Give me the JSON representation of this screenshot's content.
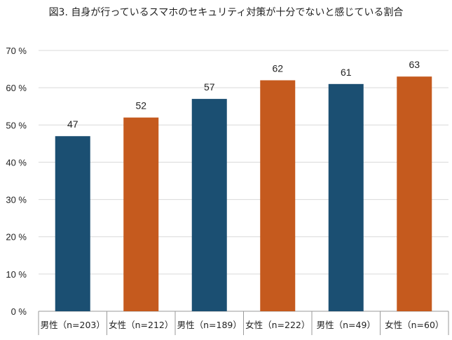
{
  "chart_data": {
    "type": "bar",
    "title": "図3. 自身が行っているスマホのセキュリティ対策が十分でないと感じている割合",
    "xlabel": "",
    "ylabel": "",
    "categories": [
      "男性（n=203）",
      "女性（n=212）",
      "男性（n=189）",
      "女性（n=222）",
      "男性（n=49）",
      "女性（n=60）"
    ],
    "values": [
      47,
      52,
      57,
      62,
      61,
      63
    ],
    "data_labels": [
      "47",
      "52",
      "57",
      "62",
      "61",
      "63"
    ],
    "bar_colors": [
      "#1b4f72",
      "#c55a1e",
      "#1b4f72",
      "#c55a1e",
      "#1b4f72",
      "#c55a1e"
    ],
    "ylim": [
      0,
      70
    ],
    "yticks": [
      0,
      10,
      20,
      30,
      40,
      50,
      60,
      70
    ],
    "ytick_labels": [
      "0 %",
      "10 %",
      "20 %",
      "30 %",
      "40 %",
      "50 %",
      "60 %",
      "70 %"
    ],
    "grid": true,
    "legend": "none"
  }
}
